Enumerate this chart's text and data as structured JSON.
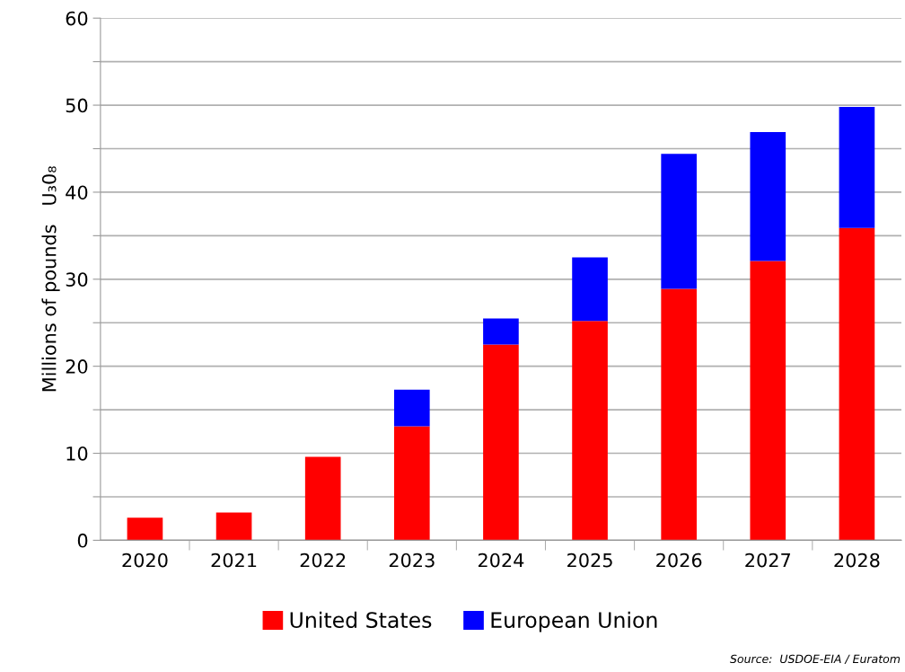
{
  "chart_data": {
    "type": "bar",
    "stacked": true,
    "ylabel": "Millions of pounds   U₃0₈",
    "categories": [
      "2020",
      "2021",
      "2022",
      "2023",
      "2024",
      "2025",
      "2026",
      "2027",
      "2028"
    ],
    "series": [
      {
        "name": "United States",
        "color": "#ff0000",
        "values": [
          2.6,
          3.2,
          9.6,
          13.1,
          22.5,
          25.2,
          28.9,
          32.1,
          35.9
        ]
      },
      {
        "name": "European Union",
        "color": "#0000ff",
        "values": [
          null,
          null,
          null,
          4.2,
          3.0,
          7.3,
          15.5,
          14.8,
          13.9
        ]
      }
    ],
    "ylim": [
      0,
      60
    ],
    "yticks": [
      0,
      {
        "value": 5,
        "label": null
      },
      10,
      {
        "value": 15,
        "label": null
      },
      20,
      {
        "value": 25,
        "label": null
      },
      30,
      {
        "value": 35,
        "label": null
      },
      40,
      {
        "value": 45,
        "label": null
      },
      50,
      {
        "value": 55,
        "label": null
      },
      60
    ],
    "grid": "y",
    "legend": "bottom",
    "annotations": [
      "Source:  USDOE-EIA / Euratom"
    ]
  }
}
